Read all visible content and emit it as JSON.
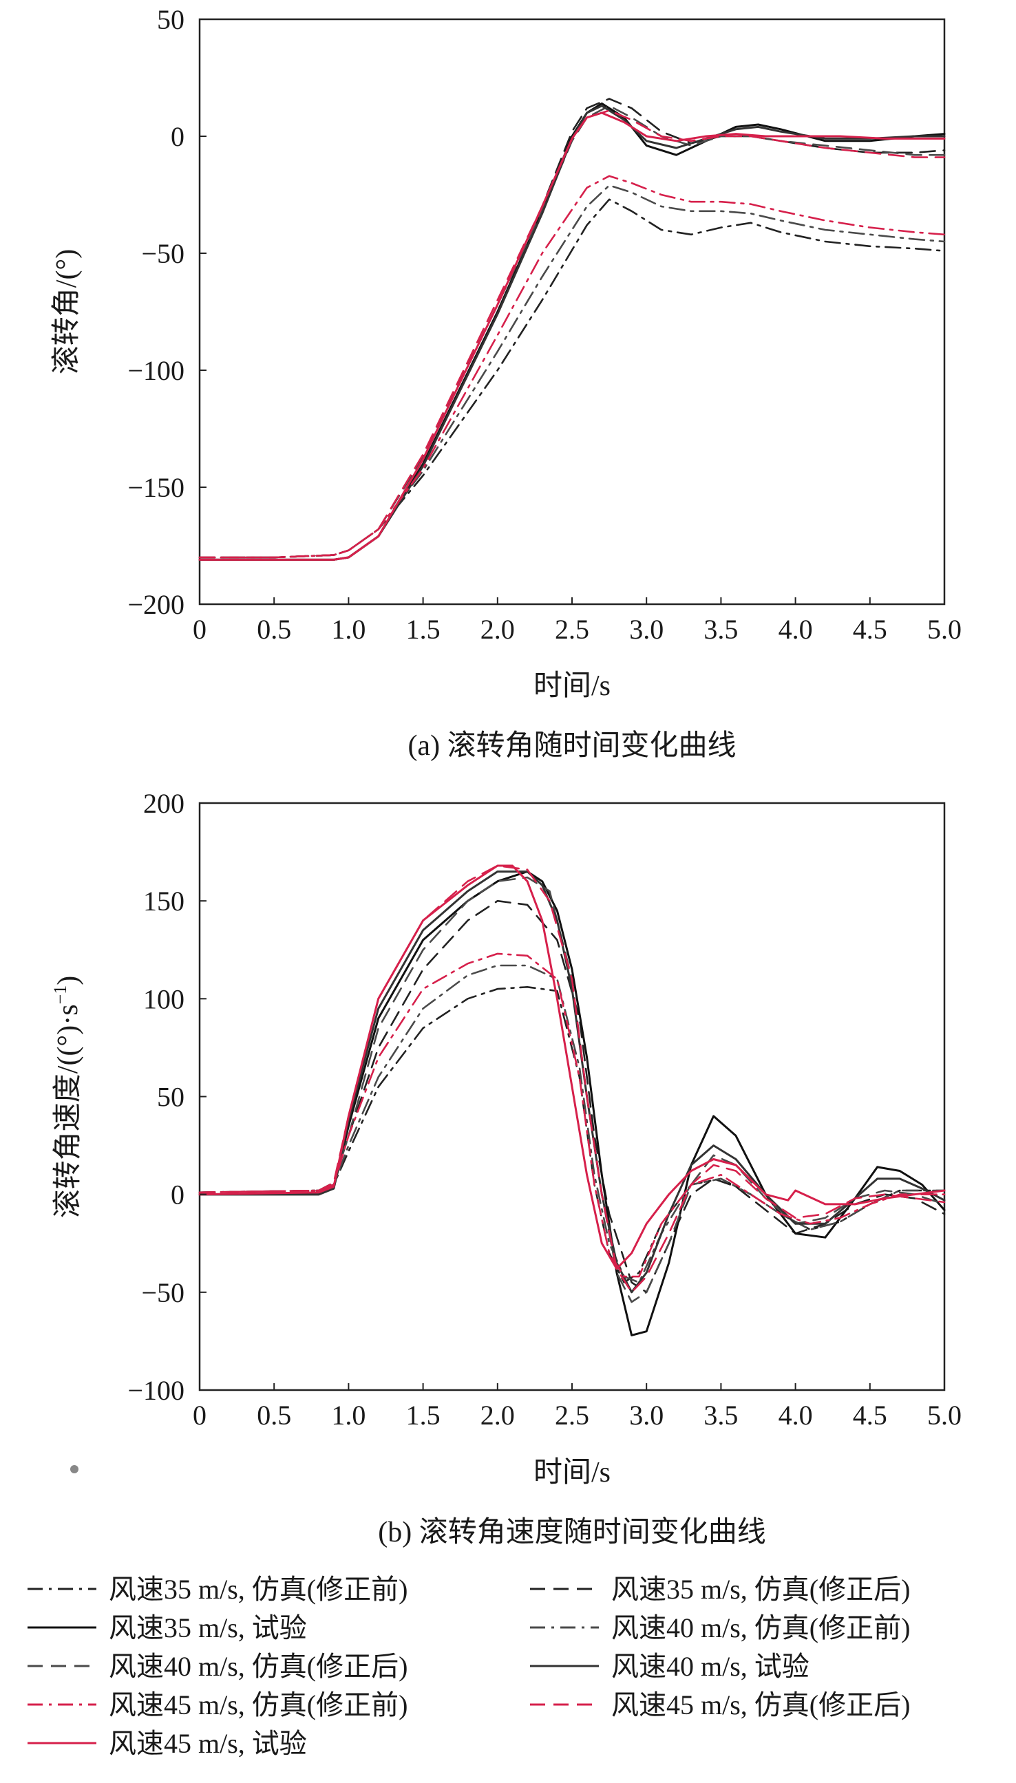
{
  "chart_data": [
    {
      "id": "a",
      "type": "line",
      "caption": "(a) 滚转角随时间变化曲线",
      "xlabel": "时间/s",
      "ylabel": "滚转角/(°)",
      "xlim": [
        0,
        5.0
      ],
      "ylim": [
        -200,
        50
      ],
      "xticks": [
        0,
        0.5,
        1.0,
        1.5,
        2.0,
        2.5,
        3.0,
        3.5,
        4.0,
        4.5,
        5.0
      ],
      "xtick_labels": [
        "0",
        "0.5",
        "1.0",
        "1.5",
        "2.0",
        "2.5",
        "3.0",
        "3.5",
        "4.0",
        "4.5",
        "5.0"
      ],
      "yticks": [
        -200,
        -150,
        -100,
        -50,
        0,
        50
      ],
      "ytick_labels": [
        "−200",
        "−150",
        "−100",
        "−50",
        "0",
        "50"
      ],
      "grid": false,
      "series": [
        {
          "ref": 0,
          "x": [
            0,
            0.5,
            0.9,
            1.0,
            1.2,
            1.5,
            2.0,
            2.3,
            2.6,
            2.75,
            2.9,
            3.1,
            3.3,
            3.5,
            3.7,
            3.9,
            4.2,
            4.5,
            4.8,
            5.0
          ],
          "y": [
            -180,
            -180,
            -179,
            -177,
            -168,
            -145,
            -100,
            -70,
            -38,
            -27,
            -32,
            -40,
            -42,
            -39,
            -37,
            -41,
            -45,
            -47,
            -48,
            -49
          ]
        },
        {
          "ref": 1,
          "x": [
            0,
            0.5,
            0.9,
            1.0,
            1.2,
            1.5,
            2.0,
            2.3,
            2.5,
            2.6,
            2.75,
            2.9,
            3.1,
            3.3,
            3.5,
            3.7,
            3.9,
            4.2,
            4.5,
            4.8,
            5.0
          ],
          "y": [
            -180,
            -180,
            -179,
            -177,
            -168,
            -137,
            -72,
            -30,
            2,
            12,
            16,
            12,
            2,
            -3,
            0,
            0,
            -2,
            -5,
            -7,
            -7,
            -6
          ]
        },
        {
          "ref": 2,
          "x": [
            0,
            0.5,
            0.9,
            1.0,
            1.2,
            1.5,
            2.0,
            2.3,
            2.5,
            2.6,
            2.7,
            2.85,
            3.0,
            3.2,
            3.4,
            3.6,
            3.75,
            3.9,
            4.2,
            4.5,
            4.8,
            5.0
          ],
          "y": [
            -181,
            -181,
            -181,
            -180,
            -171,
            -140,
            -75,
            -32,
            0,
            10,
            14,
            8,
            -4,
            -8,
            -2,
            4,
            5,
            3,
            -2,
            -2,
            0,
            1
          ]
        },
        {
          "ref": 3,
          "x": [
            0,
            0.5,
            0.9,
            1.0,
            1.2,
            1.5,
            2.0,
            2.3,
            2.6,
            2.75,
            2.9,
            3.1,
            3.3,
            3.5,
            3.7,
            3.9,
            4.2,
            4.5,
            4.8,
            5.0
          ],
          "y": [
            -180,
            -180,
            -179,
            -177,
            -168,
            -143,
            -92,
            -60,
            -30,
            -21,
            -24,
            -30,
            -32,
            -32,
            -33,
            -36,
            -40,
            -42,
            -44,
            -45
          ]
        },
        {
          "ref": 4,
          "x": [
            0,
            0.5,
            0.9,
            1.0,
            1.2,
            1.5,
            2.0,
            2.3,
            2.5,
            2.6,
            2.75,
            2.9,
            3.1,
            3.3,
            3.5,
            3.7,
            3.9,
            4.2,
            4.5,
            4.8,
            5.0
          ],
          "y": [
            -180,
            -180,
            -179,
            -177,
            -168,
            -137,
            -72,
            -32,
            -2,
            8,
            13,
            8,
            0,
            -4,
            0,
            0,
            -2,
            -4,
            -6,
            -8,
            -8
          ]
        },
        {
          "ref": 5,
          "x": [
            0,
            0.5,
            0.9,
            1.0,
            1.2,
            1.5,
            2.0,
            2.3,
            2.5,
            2.6,
            2.7,
            2.85,
            3.0,
            3.2,
            3.4,
            3.6,
            3.75,
            3.9,
            4.2,
            4.5,
            4.8,
            5.0
          ],
          "y": [
            -181,
            -181,
            -181,
            -180,
            -171,
            -141,
            -76,
            -33,
            -1,
            10,
            13,
            7,
            -2,
            -5,
            -1,
            3,
            4,
            2,
            -1,
            -1,
            0,
            0
          ]
        },
        {
          "ref": 6,
          "x": [
            0,
            0.5,
            0.9,
            1.0,
            1.2,
            1.5,
            2.0,
            2.3,
            2.6,
            2.75,
            2.9,
            3.1,
            3.3,
            3.5,
            3.7,
            3.9,
            4.2,
            4.5,
            4.8,
            5.0
          ],
          "y": [
            -180,
            -180,
            -179,
            -177,
            -168,
            -142,
            -85,
            -50,
            -22,
            -17,
            -20,
            -25,
            -28,
            -28,
            -29,
            -32,
            -36,
            -39,
            -41,
            -42
          ]
        },
        {
          "ref": 7,
          "x": [
            0,
            0.5,
            0.9,
            1.0,
            1.2,
            1.5,
            2.0,
            2.3,
            2.5,
            2.6,
            2.75,
            2.9,
            3.1,
            3.3,
            3.5,
            3.7,
            3.9,
            4.2,
            4.5,
            4.8,
            5.0
          ],
          "y": [
            -180,
            -180,
            -179,
            -177,
            -168,
            -136,
            -70,
            -30,
            -1,
            8,
            11,
            7,
            0,
            -2,
            0,
            0,
            -2,
            -5,
            -7,
            -9,
            -9
          ]
        },
        {
          "ref": 8,
          "x": [
            0,
            0.5,
            0.9,
            1.0,
            1.2,
            1.5,
            2.0,
            2.3,
            2.5,
            2.6,
            2.7,
            2.85,
            3.0,
            3.2,
            3.4,
            3.6,
            3.8,
            4.0,
            4.3,
            4.6,
            5.0
          ],
          "y": [
            -181,
            -181,
            -181,
            -180,
            -171,
            -138,
            -72,
            -30,
            -1,
            8,
            10,
            6,
            0,
            -2,
            0,
            1,
            0,
            0,
            0,
            -1,
            -1
          ]
        }
      ]
    },
    {
      "id": "b",
      "type": "line",
      "caption": "(b) 滚转角速度随时间变化曲线",
      "xlabel": "时间/s",
      "ylabel": "滚转角速度/((°)·s",
      "ylabel_sup": "−1",
      "ylabel_end": ")",
      "xlim": [
        0,
        5.0
      ],
      "ylim": [
        -100,
        200
      ],
      "xticks": [
        0,
        0.5,
        1.0,
        1.5,
        2.0,
        2.5,
        3.0,
        3.5,
        4.0,
        4.5,
        5.0
      ],
      "xtick_labels": [
        "0",
        "0.5",
        "1.0",
        "1.5",
        "2.0",
        "2.5",
        "3.0",
        "3.5",
        "4.0",
        "4.5",
        "5.0"
      ],
      "yticks": [
        -100,
        -50,
        0,
        50,
        100,
        150,
        200
      ],
      "ytick_labels": [
        "−100",
        "−50",
        "0",
        "50",
        "100",
        "150",
        "200"
      ],
      "grid": false,
      "series": [
        {
          "ref": 0,
          "x": [
            0,
            0.8,
            0.9,
            1.0,
            1.2,
            1.5,
            1.8,
            2.0,
            2.2,
            2.4,
            2.55,
            2.65,
            2.75,
            2.85,
            2.95,
            3.1,
            3.3,
            3.5,
            3.7,
            3.9,
            4.1,
            4.3,
            4.5,
            4.7,
            5.0
          ],
          "y": [
            1,
            2,
            5,
            22,
            55,
            85,
            100,
            105,
            106,
            104,
            60,
            5,
            -30,
            -45,
            -40,
            -15,
            5,
            8,
            0,
            -10,
            -18,
            -14,
            -5,
            2,
            2
          ]
        },
        {
          "ref": 1,
          "x": [
            0,
            0.8,
            0.9,
            1.0,
            1.2,
            1.5,
            1.8,
            2.0,
            2.2,
            2.4,
            2.55,
            2.65,
            2.75,
            2.9,
            3.0,
            3.15,
            3.3,
            3.45,
            3.6,
            3.8,
            4.0,
            4.2,
            4.4,
            4.6,
            4.8,
            5.0
          ],
          "y": [
            1,
            2,
            6,
            30,
            75,
            115,
            140,
            150,
            148,
            130,
            90,
            30,
            -10,
            -45,
            -50,
            -25,
            0,
            8,
            4,
            -8,
            -20,
            -15,
            -5,
            0,
            -2,
            -10
          ]
        },
        {
          "ref": 2,
          "x": [
            0,
            0.8,
            0.9,
            1.0,
            1.2,
            1.5,
            1.8,
            2.0,
            2.2,
            2.3,
            2.4,
            2.5,
            2.6,
            2.7,
            2.8,
            2.9,
            3.0,
            3.15,
            3.3,
            3.45,
            3.6,
            3.8,
            4.0,
            4.2,
            4.4,
            4.55,
            4.7,
            4.85,
            5.0
          ],
          "y": [
            0,
            0,
            3,
            35,
            90,
            130,
            150,
            160,
            165,
            160,
            145,
            115,
            70,
            10,
            -40,
            -72,
            -70,
            -35,
            15,
            40,
            30,
            0,
            -20,
            -22,
            -2,
            14,
            12,
            5,
            -8
          ]
        },
        {
          "ref": 3,
          "x": [
            0,
            0.8,
            0.9,
            1.0,
            1.2,
            1.5,
            1.8,
            2.0,
            2.2,
            2.4,
            2.55,
            2.65,
            2.75,
            2.85,
            2.95,
            3.1,
            3.3,
            3.5,
            3.7,
            3.9,
            4.1,
            4.3,
            4.5,
            4.7,
            5.0
          ],
          "y": [
            1,
            2,
            5,
            25,
            60,
            95,
            112,
            117,
            117,
            110,
            65,
            10,
            -25,
            -42,
            -45,
            -20,
            5,
            8,
            0,
            -10,
            -18,
            -14,
            -5,
            2,
            2
          ]
        },
        {
          "ref": 4,
          "x": [
            0,
            0.8,
            0.9,
            1.0,
            1.2,
            1.5,
            1.8,
            2.0,
            2.2,
            2.35,
            2.5,
            2.6,
            2.7,
            2.8,
            2.9,
            3.0,
            3.15,
            3.3,
            3.45,
            3.6,
            3.8,
            4.0,
            4.2,
            4.4,
            4.6,
            4.8,
            5.0
          ],
          "y": [
            1,
            2,
            6,
            30,
            85,
            125,
            150,
            160,
            162,
            155,
            110,
            50,
            0,
            -40,
            -55,
            -50,
            -25,
            5,
            20,
            15,
            -2,
            -15,
            -12,
            -2,
            2,
            0,
            -5
          ]
        },
        {
          "ref": 5,
          "x": [
            0,
            0.8,
            0.9,
            1.0,
            1.2,
            1.5,
            1.8,
            2.0,
            2.2,
            2.3,
            2.4,
            2.5,
            2.6,
            2.7,
            2.8,
            2.9,
            3.0,
            3.15,
            3.3,
            3.45,
            3.6,
            3.8,
            4.0,
            4.2,
            4.4,
            4.55,
            4.7,
            4.85,
            5.0
          ],
          "y": [
            0,
            0,
            3,
            38,
            95,
            135,
            155,
            165,
            165,
            158,
            140,
            105,
            50,
            0,
            -35,
            -50,
            -40,
            -10,
            15,
            25,
            18,
            0,
            -15,
            -15,
            -2,
            8,
            8,
            3,
            -3
          ]
        },
        {
          "ref": 6,
          "x": [
            0,
            0.8,
            0.9,
            1.0,
            1.2,
            1.5,
            1.8,
            2.0,
            2.2,
            2.4,
            2.55,
            2.65,
            2.75,
            2.85,
            2.95,
            3.1,
            3.3,
            3.5,
            3.7,
            3.9,
            4.1,
            4.3,
            4.5,
            4.7,
            5.0
          ],
          "y": [
            1,
            2,
            5,
            30,
            70,
            105,
            118,
            123,
            122,
            110,
            60,
            5,
            -30,
            -42,
            -42,
            -15,
            5,
            10,
            0,
            -10,
            -15,
            -12,
            -5,
            0,
            0
          ]
        },
        {
          "ref": 7,
          "x": [
            0,
            0.8,
            0.9,
            1.0,
            1.2,
            1.5,
            1.8,
            2.0,
            2.2,
            2.35,
            2.5,
            2.6,
            2.7,
            2.8,
            2.9,
            3.0,
            3.15,
            3.3,
            3.45,
            3.6,
            3.8,
            4.0,
            4.2,
            4.4,
            4.6,
            4.8,
            5.0
          ],
          "y": [
            1,
            2,
            6,
            40,
            100,
            140,
            160,
            168,
            166,
            150,
            110,
            50,
            0,
            -38,
            -50,
            -42,
            -20,
            5,
            15,
            12,
            -2,
            -12,
            -10,
            -2,
            0,
            -2,
            -4
          ]
        },
        {
          "ref": 8,
          "x": [
            0,
            0.8,
            0.9,
            1.0,
            1.2,
            1.5,
            1.8,
            2.0,
            2.1,
            2.2,
            2.3,
            2.4,
            2.5,
            2.6,
            2.7,
            2.8,
            2.9,
            3.0,
            3.15,
            3.3,
            3.45,
            3.6,
            3.8,
            3.95,
            4.0,
            4.2,
            4.4,
            4.6,
            4.8,
            5.0
          ],
          "y": [
            0,
            1,
            4,
            40,
            100,
            140,
            158,
            168,
            168,
            160,
            140,
            100,
            55,
            10,
            -25,
            -38,
            -30,
            -15,
            0,
            12,
            18,
            15,
            0,
            -3,
            2,
            -5,
            -5,
            -2,
            0,
            2
          ]
        }
      ]
    }
  ],
  "legend": {
    "placement": "bottom",
    "entries": [
      {
        "label": "风速35 m/s, 仿真(修正前)",
        "style": "dashdot",
        "color": "#222222"
      },
      {
        "label": "风速35 m/s, 仿真(修正后)",
        "style": "dash",
        "color": "#222222"
      },
      {
        "label": "风速35 m/s, 试验",
        "style": "solid",
        "color": "#111111"
      },
      {
        "label": "风速40 m/s, 仿真(修正前)",
        "style": "dashdot",
        "color": "#4a4a4a"
      },
      {
        "label": "风速40 m/s, 仿真(修正后)",
        "style": "dash",
        "color": "#4a4a4a"
      },
      {
        "label": "风速40 m/s, 试验",
        "style": "solid",
        "color": "#333333"
      },
      {
        "label": "风速45 m/s, 仿真(修正前)",
        "style": "dashdot",
        "color": "#d6204b"
      },
      {
        "label": "风速45 m/s, 仿真(修正后)",
        "style": "dash",
        "color": "#d6204b"
      },
      {
        "label": "风速45 m/s, 试验",
        "style": "solid",
        "color": "#d6204b"
      }
    ]
  }
}
